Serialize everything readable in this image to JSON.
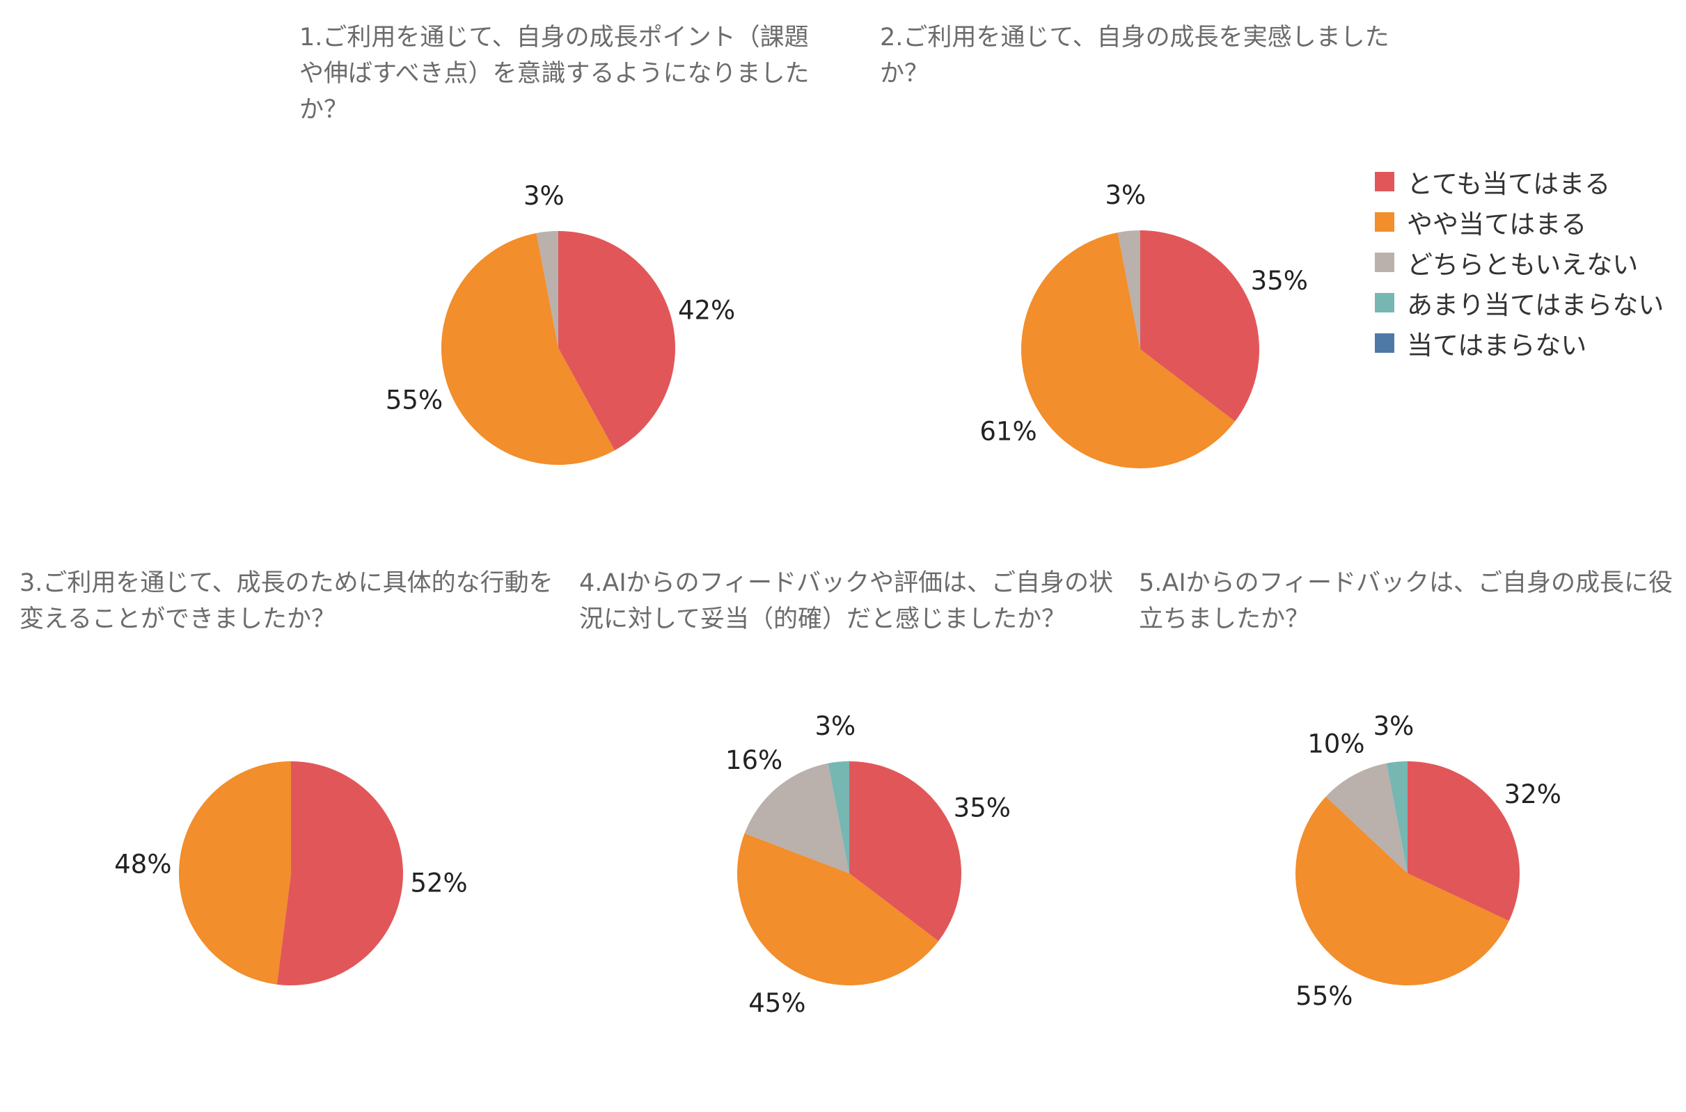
{
  "legend": {
    "items": [
      {
        "label": "とても当てはまる",
        "color": "#e15759"
      },
      {
        "label": "やや当てはまる",
        "color": "#f28e2b"
      },
      {
        "label": "どちらともいえない",
        "color": "#bab0ac"
      },
      {
        "label": "あまり当てはまらない",
        "color": "#76b7b2"
      },
      {
        "label": "当てはまらない",
        "color": "#4e79a7"
      }
    ]
  },
  "chart_data": [
    {
      "type": "pie",
      "title": "1.ご利用を通じて、自身の成長ポイント（課題\nや伸ばすべき点）を意識するようになりました\nか？",
      "categories": [
        "とても当てはまる",
        "やや当てはまる",
        "どちらともいえない",
        "あまり当てはまらない",
        "当てはまらない"
      ],
      "values": [
        42,
        55,
        3,
        0,
        0
      ],
      "labels": [
        "42%",
        "55%",
        "3%",
        "",
        ""
      ]
    },
    {
      "type": "pie",
      "title": "2.ご利用を通じて、自身の成長を実感しました\nか？",
      "categories": [
        "とても当てはまる",
        "やや当てはまる",
        "どちらともいえない",
        "あまり当てはまらない",
        "当てはまらない"
      ],
      "values": [
        35,
        61,
        3,
        0,
        0
      ],
      "labels": [
        "35%",
        "61%",
        "3%",
        "",
        ""
      ]
    },
    {
      "type": "pie",
      "title": "3.ご利用を通じて、成長のために具体的な行動を\n変えることができましたか？",
      "categories": [
        "とても当てはまる",
        "やや当てはまる",
        "どちらともいえない",
        "あまり当てはまらない",
        "当てはまらない"
      ],
      "values": [
        52,
        48,
        0,
        0,
        0
      ],
      "labels": [
        "52%",
        "48%",
        "",
        "",
        ""
      ]
    },
    {
      "type": "pie",
      "title": "4.AIからのフィードバックや評価は、ご自身の状\n況に対して妥当（的確）だと感じましたか？",
      "categories": [
        "とても当てはまる",
        "やや当てはまる",
        "どちらともいえない",
        "あまり当てはまらない",
        "当てはまらない"
      ],
      "values": [
        35,
        45,
        16,
        3,
        0
      ],
      "labels": [
        "35%",
        "45%",
        "16%",
        "3%",
        ""
      ]
    },
    {
      "type": "pie",
      "title": "5.AIからのフィードバックは、ご自身の成長に役\n立ちましたか？",
      "categories": [
        "とても当てはまる",
        "やや当てはまる",
        "どちらともいえない",
        "あまり当てはまらない",
        "当てはまらない"
      ],
      "values": [
        32,
        55,
        10,
        3,
        0
      ],
      "labels": [
        "32%",
        "55%",
        "10%",
        "3%",
        ""
      ]
    }
  ]
}
